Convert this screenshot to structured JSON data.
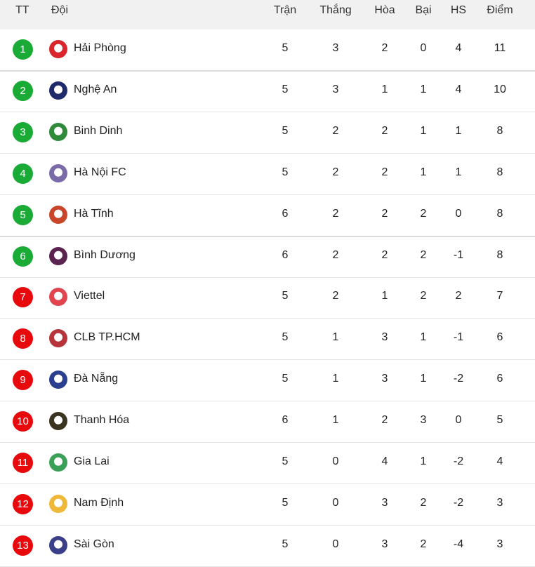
{
  "header": {
    "rank": "TT",
    "team": "Đội",
    "played": "Trận",
    "won": "Thắng",
    "drawn": "Hòa",
    "lost": "Bại",
    "gd": "HS",
    "points": "Điểm"
  },
  "colors": {
    "top_badge": "#1aab37",
    "bottom_badge": "#e8090d",
    "header_bg": "#f1f1f1"
  },
  "rows": [
    {
      "rank": "1",
      "team": "Hải Phòng",
      "played": "5",
      "won": "3",
      "drawn": "2",
      "lost": "0",
      "gd": "4",
      "points": "11",
      "zone": "top",
      "logo": "#d9262c"
    },
    {
      "rank": "2",
      "team": "Nghệ An",
      "played": "5",
      "won": "3",
      "drawn": "1",
      "lost": "1",
      "gd": "4",
      "points": "10",
      "zone": "top",
      "logo": "#1f2a6b"
    },
    {
      "rank": "3",
      "team": "Binh Dinh",
      "played": "5",
      "won": "2",
      "drawn": "2",
      "lost": "1",
      "gd": "1",
      "points": "8",
      "zone": "top",
      "logo": "#2f8a3a"
    },
    {
      "rank": "4",
      "team": "Hà Nội FC",
      "played": "5",
      "won": "2",
      "drawn": "2",
      "lost": "1",
      "gd": "1",
      "points": "8",
      "zone": "top",
      "logo": "#7a6aa8"
    },
    {
      "rank": "5",
      "team": "Hà Tĩnh",
      "played": "6",
      "won": "2",
      "drawn": "2",
      "lost": "2",
      "gd": "0",
      "points": "8",
      "zone": "top",
      "logo": "#c8462a"
    },
    {
      "rank": "6",
      "team": "Bình Dương",
      "played": "6",
      "won": "2",
      "drawn": "2",
      "lost": "2",
      "gd": "-1",
      "points": "8",
      "zone": "top",
      "logo": "#5a2350"
    },
    {
      "rank": "7",
      "team": "Viettel",
      "played": "5",
      "won": "2",
      "drawn": "1",
      "lost": "2",
      "gd": "2",
      "points": "7",
      "zone": "bottom",
      "logo": "#e04550"
    },
    {
      "rank": "8",
      "team": "CLB TP.HCM",
      "played": "5",
      "won": "1",
      "drawn": "3",
      "lost": "1",
      "gd": "-1",
      "points": "6",
      "zone": "bottom",
      "logo": "#b7343a"
    },
    {
      "rank": "9",
      "team": "Đà Nẵng",
      "played": "5",
      "won": "1",
      "drawn": "3",
      "lost": "1",
      "gd": "-2",
      "points": "6",
      "zone": "bottom",
      "logo": "#2a3f8f"
    },
    {
      "rank": "10",
      "team": "Thanh Hóa",
      "played": "6",
      "won": "1",
      "drawn": "2",
      "lost": "3",
      "gd": "0",
      "points": "5",
      "zone": "bottom",
      "logo": "#3a3320"
    },
    {
      "rank": "11",
      "team": "Gia Lai",
      "played": "5",
      "won": "0",
      "drawn": "4",
      "lost": "1",
      "gd": "-2",
      "points": "4",
      "zone": "bottom",
      "logo": "#3aa058"
    },
    {
      "rank": "12",
      "team": "Nam Định",
      "played": "5",
      "won": "0",
      "drawn": "3",
      "lost": "2",
      "gd": "-2",
      "points": "3",
      "zone": "bottom",
      "logo": "#f0b838"
    },
    {
      "rank": "13",
      "team": "Sài Gòn",
      "played": "5",
      "won": "0",
      "drawn": "3",
      "lost": "2",
      "gd": "-4",
      "points": "3",
      "zone": "bottom",
      "logo": "#3b3f8a"
    }
  ]
}
